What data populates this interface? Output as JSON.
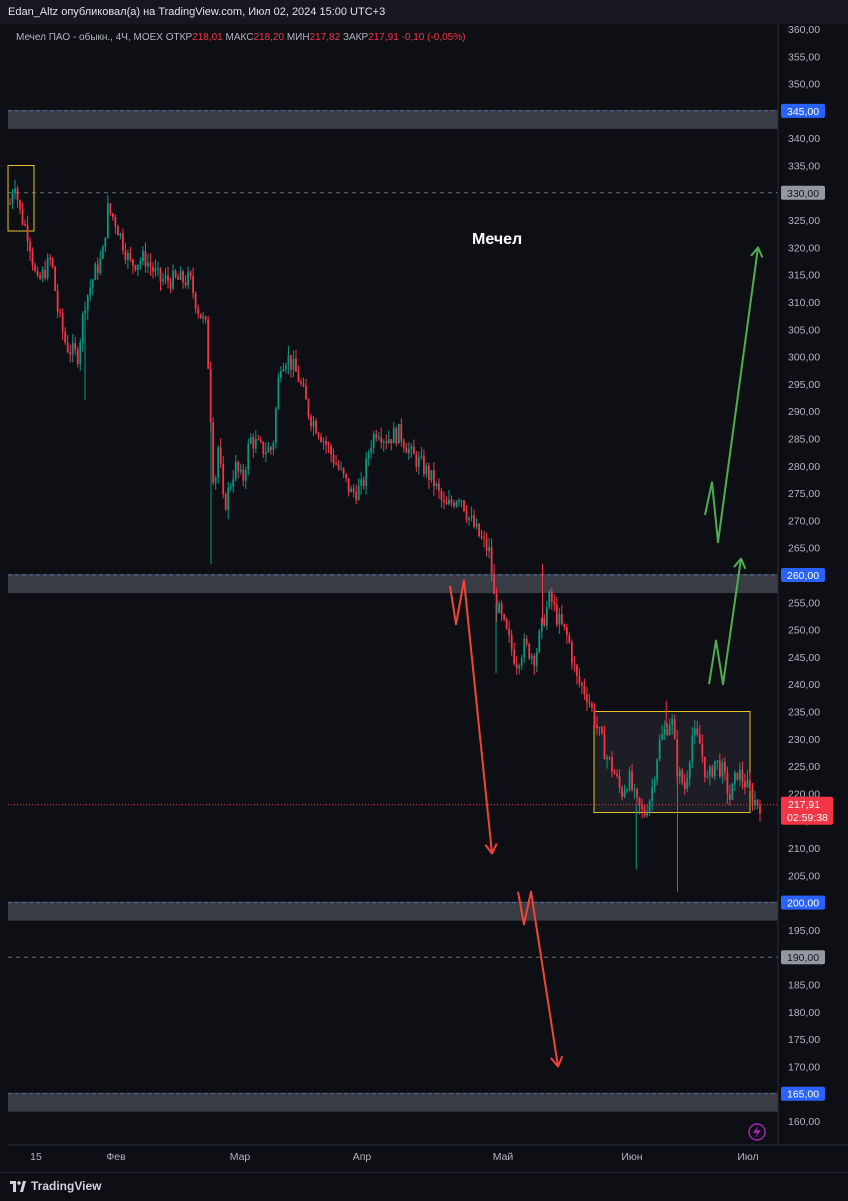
{
  "header": {
    "publisher_line": "Edan_Altz опубликовал(а) на TradingView.com, Июл 02, 2024 15:00 UTC+3"
  },
  "legend": {
    "symbol": "Мечел ПАО - обыкн., 4Ч, MOEX",
    "open_label": "ОТКР",
    "open": "218,01",
    "high_label": "МАКС",
    "high": "218,20",
    "low_label": "МИН",
    "low": "217,82",
    "close_label": "ЗАКР",
    "close": "217,91",
    "change": "-0,10 (-0,05%)"
  },
  "annotation_title": "Мечел",
  "footer": {
    "brand": "TradingView"
  },
  "colors": {
    "background": "#0e0f15",
    "up_candle": "#089981",
    "down_candle": "#f23645",
    "level_band": "#3a3c45",
    "level_line": "#4a6fa5",
    "range_box": "#e6c229",
    "arrow_up": "#4caf50",
    "arrow_down": "#f44336",
    "price_tag": "#f23645",
    "level_tag": "#2962ff"
  },
  "chart_data": {
    "type": "candlestick",
    "x_tick_labels": [
      "15",
      "Фев",
      "Мар",
      "Апр",
      "Май",
      "Июн",
      "Июл"
    ],
    "y_tick_labels": [
      "160,00",
      "165,00",
      "170,00",
      "175,00",
      "180,00",
      "185,00",
      "190,00",
      "195,00",
      "200,00",
      "205,00",
      "210,00",
      "215,00",
      "220,00",
      "225,00",
      "230,00",
      "235,00",
      "240,00",
      "245,00",
      "250,00",
      "255,00",
      "260,00",
      "265,00",
      "270,00",
      "275,00",
      "280,00",
      "285,00",
      "290,00",
      "295,00",
      "300,00",
      "305,00",
      "310,00",
      "315,00",
      "320,00",
      "325,00",
      "330,00",
      "335,00",
      "340,00",
      "345,00",
      "350,00",
      "355,00",
      "360,00"
    ],
    "ylim": [
      158,
      362
    ],
    "price_path": [
      [
        0,
        328
      ],
      [
        0.006,
        333
      ],
      [
        0.012,
        327
      ],
      [
        0.025,
        322
      ],
      [
        0.036,
        313
      ],
      [
        0.055,
        318
      ],
      [
        0.064,
        308
      ],
      [
        0.075,
        302
      ],
      [
        0.09,
        300
      ],
      [
        0.1,
        310
      ],
      [
        0.115,
        316
      ],
      [
        0.123,
        318
      ],
      [
        0.13,
        327
      ],
      [
        0.14,
        325
      ],
      [
        0.16,
        317
      ],
      [
        0.18,
        318
      ],
      [
        0.2,
        314
      ],
      [
        0.215,
        314
      ],
      [
        0.24,
        314
      ],
      [
        0.25,
        309
      ],
      [
        0.262,
        305
      ],
      [
        0.268,
        288
      ],
      [
        0.272,
        275
      ],
      [
        0.278,
        284
      ],
      [
        0.285,
        272
      ],
      [
        0.3,
        280
      ],
      [
        0.31,
        277
      ],
      [
        0.32,
        285
      ],
      [
        0.335,
        283
      ],
      [
        0.35,
        283
      ],
      [
        0.36,
        299
      ],
      [
        0.37,
        300
      ],
      [
        0.385,
        296
      ],
      [
        0.4,
        289
      ],
      [
        0.41,
        287
      ],
      [
        0.425,
        283
      ],
      [
        0.44,
        279
      ],
      [
        0.455,
        275
      ],
      [
        0.47,
        276
      ],
      [
        0.48,
        284
      ],
      [
        0.49,
        287
      ],
      [
        0.5,
        285
      ],
      [
        0.52,
        286
      ],
      [
        0.535,
        282
      ],
      [
        0.55,
        280
      ],
      [
        0.565,
        277
      ],
      [
        0.58,
        272
      ],
      [
        0.6,
        275
      ],
      [
        0.61,
        271
      ],
      [
        0.63,
        266
      ],
      [
        0.64,
        264
      ],
      [
        0.645,
        256
      ],
      [
        0.655,
        252
      ],
      [
        0.665,
        248
      ],
      [
        0.675,
        244
      ],
      [
        0.685,
        247
      ],
      [
        0.7,
        245
      ],
      [
        0.71,
        251
      ],
      [
        0.72,
        256
      ],
      [
        0.73,
        252
      ],
      [
        0.745,
        248
      ],
      [
        0.755,
        241
      ],
      [
        0.77,
        238
      ],
      [
        0.785,
        231
      ],
      [
        0.795,
        227
      ],
      [
        0.805,
        224
      ],
      [
        0.815,
        220
      ],
      [
        0.825,
        223
      ],
      [
        0.835,
        218
      ],
      [
        0.845,
        216
      ],
      [
        0.855,
        220
      ],
      [
        0.865,
        229
      ],
      [
        0.875,
        232
      ],
      [
        0.882,
        234
      ],
      [
        0.89,
        224
      ],
      [
        0.9,
        221
      ],
      [
        0.91,
        231
      ],
      [
        0.92,
        229
      ],
      [
        0.93,
        222
      ],
      [
        0.94,
        226
      ],
      [
        0.95,
        224
      ],
      [
        0.96,
        219
      ],
      [
        0.97,
        224
      ],
      [
        0.98,
        222
      ],
      [
        0.99,
        219
      ],
      [
        1.0,
        218
      ]
    ],
    "spikes": [
      {
        "t": 0.268,
        "low": 262
      },
      {
        "t": 0.1,
        "low": 292
      },
      {
        "t": 0.648,
        "low": 242
      },
      {
        "t": 0.71,
        "high": 262
      },
      {
        "t": 0.835,
        "low": 206
      },
      {
        "t": 0.89,
        "low": 202
      },
      {
        "t": 0.875,
        "high": 237
      }
    ],
    "support_resistance": [
      345,
      260,
      200,
      165
    ],
    "dashed_levels": [
      330,
      190
    ],
    "range_box": {
      "top": 235,
      "bottom": 216.5
    },
    "range_box_start": {
      "top": 335,
      "bottom": 323
    },
    "current_price": 217.91,
    "current_price_label": "217,91",
    "countdown": "02:59:38",
    "level_tags": [
      {
        "price": 345,
        "label": "345,00",
        "style": "blue"
      },
      {
        "price": 330,
        "label": "330,00",
        "style": "grey"
      },
      {
        "price": 260,
        "label": "260,00",
        "style": "blue"
      },
      {
        "price": 200,
        "label": "200,00",
        "style": "blue"
      },
      {
        "price": 190,
        "label": "190,00",
        "style": "grey"
      },
      {
        "price": 165,
        "label": "165,00",
        "style": "blue"
      }
    ],
    "arrow_paths": {
      "green_long": [
        [
          705,
          271
        ],
        [
          712,
          277
        ],
        [
          718,
          266
        ],
        [
          758,
          320
        ]
      ],
      "green_short": [
        [
          709,
          240
        ],
        [
          716,
          248
        ],
        [
          723,
          240
        ],
        [
          741,
          263
        ]
      ],
      "red_long": [
        [
          450,
          258
        ],
        [
          456,
          251
        ],
        [
          464,
          259
        ],
        [
          492,
          209
        ]
      ],
      "red_short": [
        [
          518,
          202
        ],
        [
          524,
          196
        ],
        [
          531,
          202
        ],
        [
          558,
          170
        ]
      ]
    }
  }
}
